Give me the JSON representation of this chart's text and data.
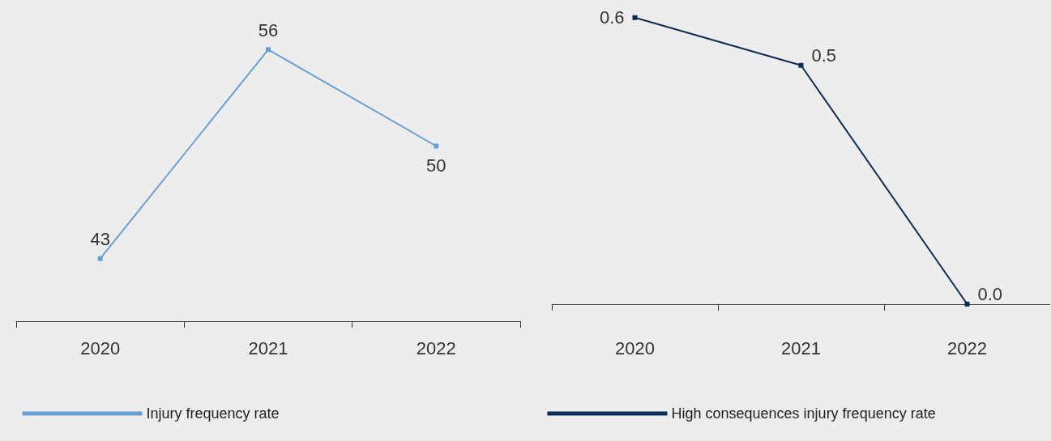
{
  "chart_data": [
    {
      "type": "line",
      "categories": [
        "2020",
        "2021",
        "2022"
      ],
      "series": [
        {
          "name": "Injury frequency rate",
          "color": "#6a9fd4",
          "values": [
            43,
            56,
            50
          ],
          "value_labels": [
            "43",
            "56",
            "50"
          ]
        }
      ],
      "legend": "bottom left",
      "marker": "square",
      "grid": false,
      "tick_labels": "x"
    },
    {
      "type": "line",
      "categories": [
        "2020",
        "2021",
        "2022"
      ],
      "series": [
        {
          "name": "High consequences injury frequency rate",
          "color": "#0d2d55",
          "values": [
            0.6,
            0.5,
            0.0
          ],
          "value_labels": [
            "0.6",
            "0.5",
            "0.0"
          ]
        }
      ],
      "legend": "bottom left",
      "marker": "square",
      "grid": false,
      "tick_labels": "x"
    }
  ]
}
